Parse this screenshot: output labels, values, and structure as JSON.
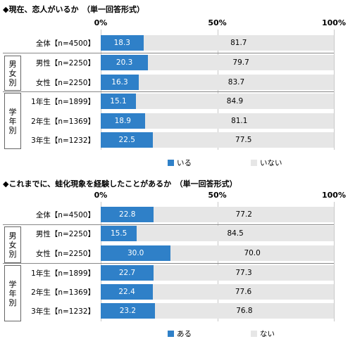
{
  "charts": [
    {
      "title": "◆現在、恋人がいるか　（単一回答形式）",
      "ticks": [
        "0%",
        "50%",
        "100%"
      ],
      "groups": [
        {
          "label": "",
          "chars": []
        },
        {
          "label": "男女別",
          "chars": [
            "男",
            "女",
            "別"
          ]
        },
        {
          "label": "学年別",
          "chars": [
            "学",
            "年",
            "別"
          ]
        }
      ],
      "legend": [
        {
          "label": "いる",
          "color": "#2f80c8"
        },
        {
          "label": "いない",
          "color": "#e6e6e6"
        }
      ]
    },
    {
      "title": "◆これまでに、蛙化現象を経験したことがあるか　（単一回答形式）",
      "ticks": [
        "0%",
        "50%",
        "100%"
      ],
      "groups": [
        {
          "label": "",
          "chars": []
        },
        {
          "label": "男女別",
          "chars": [
            "男",
            "女",
            "別"
          ]
        },
        {
          "label": "学年別",
          "chars": [
            "学",
            "年",
            "別"
          ]
        }
      ],
      "legend": [
        {
          "label": "ある",
          "color": "#2f80c8"
        },
        {
          "label": "ない",
          "color": "#e6e6e6"
        }
      ]
    }
  ],
  "chart_data": [
    {
      "type": "bar",
      "orientation": "horizontal-stacked-100",
      "title": "◆現在、恋人がいるか　（単一回答形式）",
      "xlim": [
        0,
        100
      ],
      "categories": [
        "全体【n=4500】",
        "男性【n=2250】",
        "女性【n=2250】",
        "1年生【n=1899】",
        "2年生【n=1369】",
        "3年生【n=1232】"
      ],
      "series": [
        {
          "name": "いる",
          "values": [
            18.3,
            20.3,
            16.3,
            15.1,
            18.9,
            22.5
          ]
        },
        {
          "name": "いない",
          "values": [
            81.7,
            79.7,
            83.7,
            84.9,
            81.1,
            77.5
          ]
        }
      ],
      "grid": true,
      "legend_position": "bottom"
    },
    {
      "type": "bar",
      "orientation": "horizontal-stacked-100",
      "title": "◆これまでに、蛙化現象を経験したことがあるか　（単一回答形式）",
      "xlim": [
        0,
        100
      ],
      "categories": [
        "全体【n=4500】",
        "男性【n=2250】",
        "女性【n=2250】",
        "1年生【n=1899】",
        "2年生【n=1369】",
        "3年生【n=1232】"
      ],
      "series": [
        {
          "name": "ある",
          "values": [
            22.8,
            15.5,
            30.0,
            22.7,
            22.4,
            23.2
          ]
        },
        {
          "name": "ない",
          "values": [
            77.2,
            84.5,
            70.0,
            77.3,
            77.6,
            76.8
          ]
        }
      ],
      "grid": true,
      "legend_position": "bottom"
    }
  ]
}
